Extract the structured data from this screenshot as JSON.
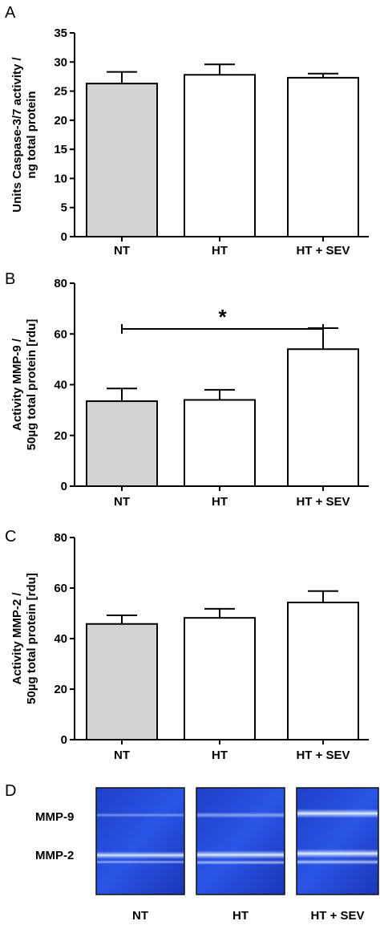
{
  "chart_data": [
    {
      "type": "bar",
      "panel": "A",
      "categories": [
        "NT",
        "HT",
        "HT + SEV"
      ],
      "values": [
        26.3,
        27.8,
        27.3
      ],
      "errors": [
        2.0,
        1.8,
        0.7
      ],
      "ylabel_lines": [
        "Units Caspase-3/7 activity /",
        "ng total protein"
      ],
      "ylim": [
        0,
        35
      ],
      "yticks": [
        0,
        5,
        10,
        15,
        20,
        25,
        30,
        35
      ],
      "bar_colors": [
        "#d3d3d3",
        "#ffffff",
        "#ffffff"
      ],
      "grid": false
    },
    {
      "type": "bar",
      "panel": "B",
      "categories": [
        "NT",
        "HT",
        "HT + SEV"
      ],
      "values": [
        33.5,
        34.0,
        54.0
      ],
      "errors": [
        5.0,
        4.0,
        8.3
      ],
      "ylabel_lines": [
        "Activity MMP-9 /",
        "50µg total protein [rdu]"
      ],
      "ylim": [
        0,
        80
      ],
      "yticks": [
        0,
        20,
        40,
        60,
        80
      ],
      "bar_colors": [
        "#d3d3d3",
        "#ffffff",
        "#ffffff"
      ],
      "grid": false,
      "significance": {
        "from": "NT",
        "to": "HT + SEV",
        "label": "*"
      }
    },
    {
      "type": "bar",
      "panel": "C",
      "categories": [
        "NT",
        "HT",
        "HT + SEV"
      ],
      "values": [
        45.8,
        48.2,
        54.3
      ],
      "errors": [
        3.4,
        3.6,
        4.5
      ],
      "ylabel_lines": [
        "Activity MMP-2 /",
        "50µg total protein [rdu]"
      ],
      "ylim": [
        0,
        80
      ],
      "yticks": [
        0,
        20,
        40,
        60,
        80
      ],
      "bar_colors": [
        "#d3d3d3",
        "#ffffff",
        "#ffffff"
      ],
      "grid": false
    }
  ],
  "gel": {
    "panel": "D",
    "band_labels": [
      "MMP-9",
      "MMP-2"
    ],
    "lanes": [
      "NT",
      "HT",
      "HT + SEV"
    ]
  }
}
